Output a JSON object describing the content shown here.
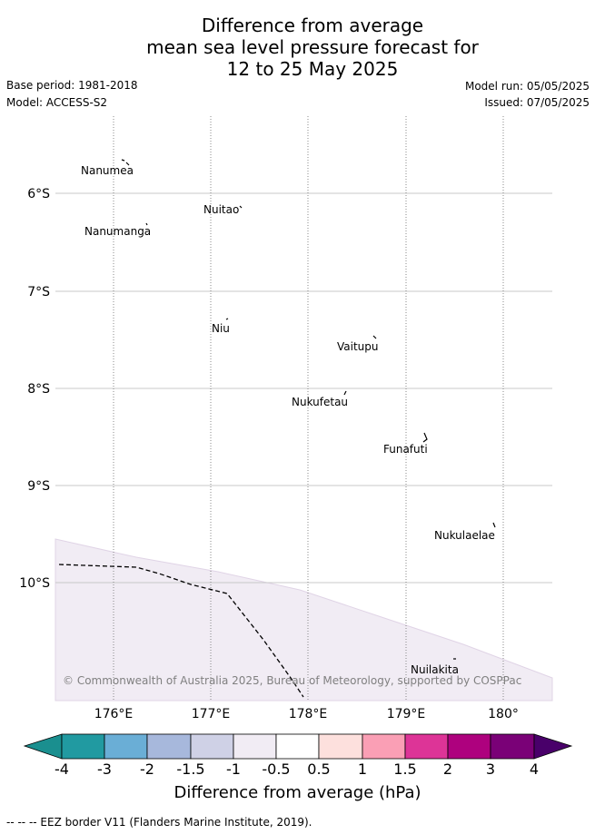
{
  "title_lines": [
    "Difference from average",
    "mean sea level pressure forecast for",
    "12 to 25 May 2025"
  ],
  "base_period": "Base period: 1981-2018",
  "model": "Model: ACCESS-S2",
  "model_run": "Model run: 05/05/2025",
  "issued": "Issued: 07/05/2025",
  "latitude_labels": [
    "6°S",
    "7°S",
    "8°S",
    "9°S",
    "10°S"
  ],
  "longitude_labels": [
    "176°E",
    "177°E",
    "178°E",
    "179°E",
    "180°"
  ],
  "islands": [
    {
      "name": "Nanumea",
      "lon": 176.15,
      "lat": -5.66
    },
    {
      "name": "Nuitao",
      "lon": 177.3,
      "lat": -6.11
    },
    {
      "name": "Nanumanga",
      "lon": 176.32,
      "lat": -6.29
    },
    {
      "name": "Niu",
      "lon": 177.17,
      "lat": -7.29
    },
    {
      "name": "Vaitupu",
      "lon": 178.68,
      "lat": -7.48
    },
    {
      "name": "Nukufetau",
      "lon": 178.38,
      "lat": -8.03
    },
    {
      "name": "Funafuti",
      "lon": 179.21,
      "lat": -8.49
    },
    {
      "name": "Nukulaelae",
      "lon": 179.85,
      "lat": -9.4
    },
    {
      "name": "Nuilakita",
      "lon": 179.52,
      "lat": -10.76
    }
  ],
  "copyright": "© Commonwealth of Australia 2025, Bureau of Meteorology, supported by COSPPac",
  "colorbar": {
    "title": "Difference from average (hPa)",
    "tick_labels": [
      "-4",
      "-3",
      "-2",
      "-1.5",
      "-1",
      "-0.5",
      "0.5",
      "1",
      "1.5",
      "2",
      "3",
      "4"
    ],
    "colors": [
      "#1a8f8f",
      "#219aa1",
      "#6aaed6",
      "#a7b8dc",
      "#cfd1e6",
      "#f1ecf4",
      "#ffffff",
      "#fde0dd",
      "#fa9fb5",
      "#dd3497",
      "#ae017e",
      "#7a0177",
      "#49006a"
    ]
  },
  "shading": {
    "category": "-0.5 to -1",
    "color": "#f1ecf4"
  },
  "footer": "-- -- -- EEZ border V11 (Flanders Marine Institute, 2019)."
}
